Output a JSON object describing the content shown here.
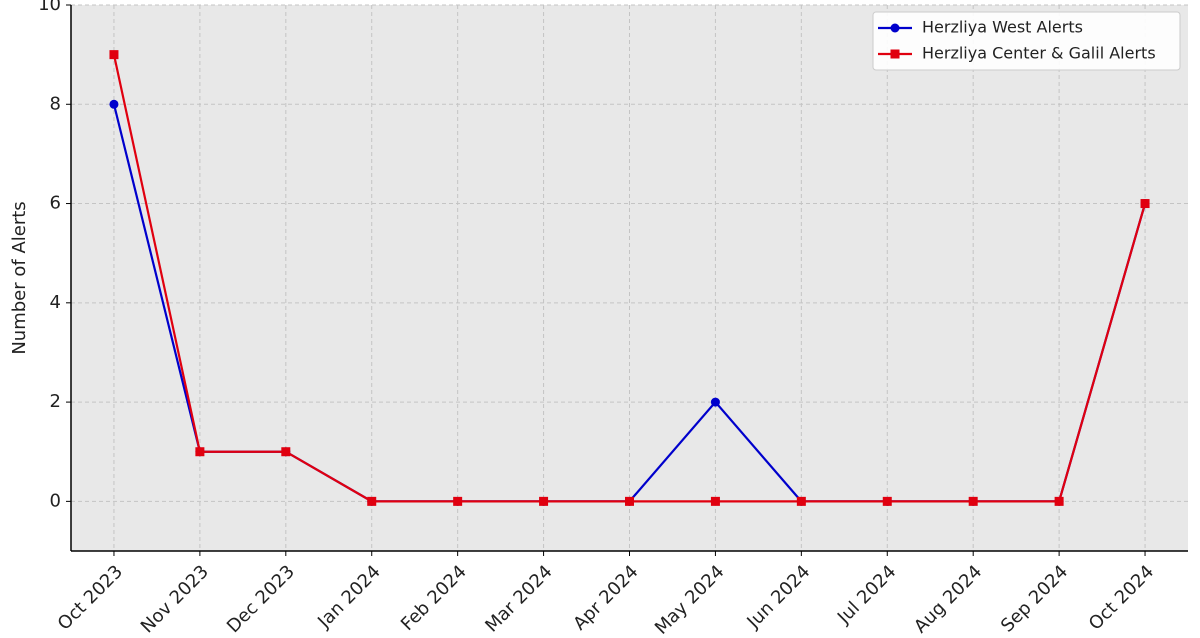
{
  "chart_data": {
    "type": "line",
    "y_label": "Number of Alerts",
    "categories": [
      "Oct 2023",
      "Nov 2023",
      "Dec 2023",
      "Jan 2024",
      "Feb 2024",
      "Mar 2024",
      "Apr 2024",
      "May 2024",
      "Jun 2024",
      "Jul 2024",
      "Aug 2024",
      "Sep 2024",
      "Oct 2024"
    ],
    "series": [
      {
        "name": "Herzliya West Alerts",
        "color": "#0000cc",
        "marker": "circle",
        "values": [
          8,
          1,
          1,
          0,
          0,
          0,
          0,
          2,
          0,
          0,
          0,
          0,
          6
        ]
      },
      {
        "name": "Herzliya Center & Galil Alerts",
        "color": "#e0000f",
        "marker": "square",
        "values": [
          9,
          1,
          1,
          0,
          0,
          0,
          0,
          0,
          0,
          0,
          0,
          0,
          6
        ]
      }
    ],
    "ylim": [
      -1,
      10
    ],
    "yticks": [
      0,
      2,
      4,
      6,
      8,
      10
    ],
    "grid": true,
    "legend": "upper right"
  }
}
